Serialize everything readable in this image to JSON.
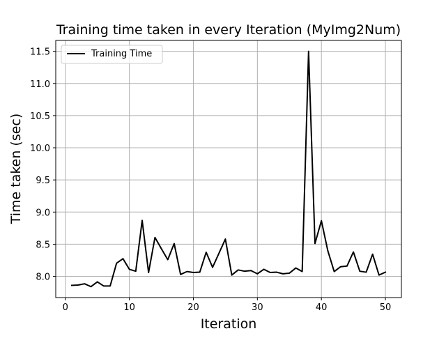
{
  "chart_data": {
    "type": "line",
    "title": "Training time taken in every Iteration (MyImg2Num)",
    "xlabel": "Iteration",
    "ylabel": "Time taken (sec)",
    "xlim": [
      -1.5,
      52.5
    ],
    "ylim": [
      7.67,
      11.67
    ],
    "xticks": [
      0,
      10,
      20,
      30,
      40,
      50
    ],
    "xtick_labels": [
      "0",
      "10",
      "20",
      "30",
      "40",
      "50"
    ],
    "yticks": [
      8.0,
      8.5,
      9.0,
      9.5,
      10.0,
      10.5,
      11.0,
      11.5
    ],
    "ytick_labels": [
      "8.0",
      "8.5",
      "9.0",
      "9.5",
      "10.0",
      "10.5",
      "11.0",
      "11.5"
    ],
    "grid": true,
    "legend_position": "top-left",
    "series": [
      {
        "name": "Training Time",
        "color": "#000000",
        "x": [
          1,
          2,
          3,
          4,
          5,
          6,
          7,
          8,
          9,
          10,
          11,
          12,
          13,
          14,
          15,
          16,
          17,
          18,
          19,
          20,
          21,
          22,
          23,
          24,
          25,
          26,
          27,
          28,
          29,
          30,
          31,
          32,
          33,
          34,
          35,
          36,
          37,
          38,
          39,
          40,
          41,
          42,
          43,
          44,
          45,
          46,
          47,
          48,
          49,
          50
        ],
        "y": [
          7.86,
          7.865,
          7.885,
          7.84,
          7.915,
          7.85,
          7.85,
          8.205,
          8.275,
          8.11,
          8.08,
          8.87,
          8.06,
          8.605,
          8.43,
          8.26,
          8.51,
          8.03,
          8.075,
          8.06,
          8.065,
          8.375,
          8.14,
          8.36,
          8.58,
          8.02,
          8.1,
          8.08,
          8.09,
          8.04,
          8.11,
          8.06,
          8.065,
          8.04,
          8.05,
          8.13,
          8.075,
          11.5,
          8.51,
          8.865,
          8.4,
          8.075,
          8.15,
          8.16,
          8.38,
          8.08,
          8.065,
          8.345,
          8.02,
          8.065
        ]
      }
    ]
  }
}
